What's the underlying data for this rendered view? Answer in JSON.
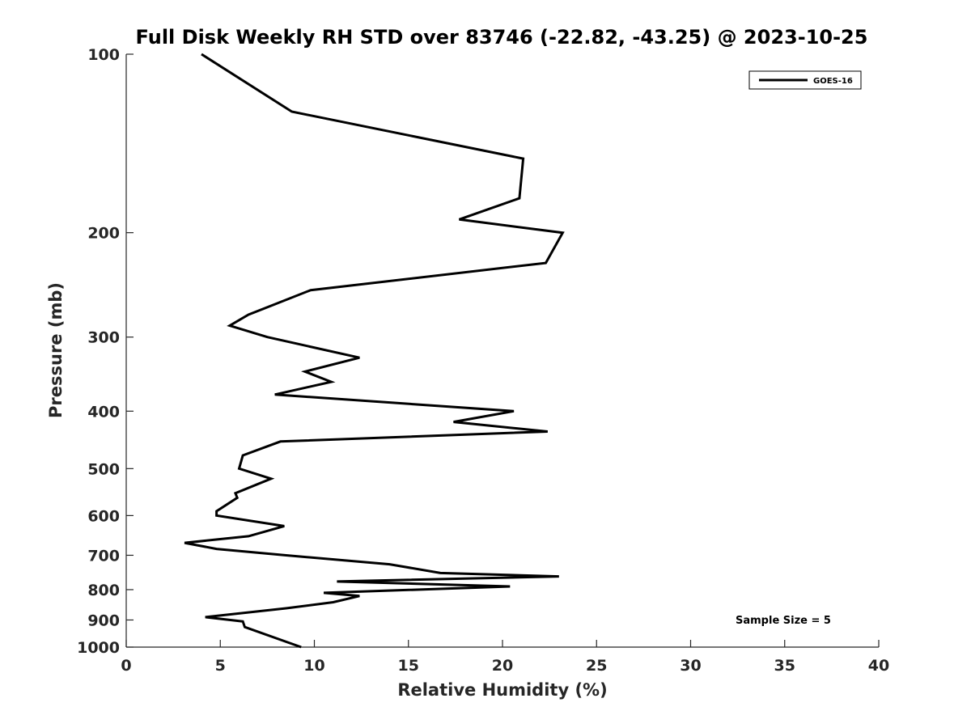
{
  "chart_data": {
    "type": "line",
    "title": "Full Disk Weekly RH STD over 83746 (-22.82, -43.25) @ 2023-10-25",
    "xlabel": "Relative Humidity (%)",
    "ylabel": "Pressure (mb)",
    "xlim": [
      0,
      40
    ],
    "ylim": [
      100,
      1000
    ],
    "y_scale": "log",
    "y_reversed": true,
    "x_ticks": [
      "0",
      "5",
      "10",
      "15",
      "20",
      "25",
      "30",
      "35",
      "40"
    ],
    "y_ticks": [
      "100",
      "200",
      "300",
      "400",
      "500",
      "600",
      "700",
      "800",
      "900",
      "1000"
    ],
    "legend": {
      "position": "top-right",
      "entries": [
        "GOES-16"
      ]
    },
    "annotation": "Sample Size = 5",
    "series": [
      {
        "name": "GOES-16",
        "color": "#000000",
        "points": [
          [
            4.0,
            100
          ],
          [
            8.8,
            125
          ],
          [
            21.1,
            150
          ],
          [
            20.9,
            175
          ],
          [
            17.7,
            190
          ],
          [
            23.2,
            200
          ],
          [
            22.3,
            225
          ],
          [
            9.8,
            250
          ],
          [
            6.5,
            275
          ],
          [
            5.5,
            287
          ],
          [
            7.5,
            300
          ],
          [
            12.4,
            325
          ],
          [
            9.5,
            343
          ],
          [
            10.9,
            357
          ],
          [
            7.9,
            375
          ],
          [
            20.6,
            400
          ],
          [
            17.4,
            417
          ],
          [
            22.4,
            433
          ],
          [
            8.2,
            450
          ],
          [
            6.2,
            475
          ],
          [
            6.0,
            500
          ],
          [
            7.7,
            520
          ],
          [
            5.8,
            550
          ],
          [
            5.9,
            560
          ],
          [
            4.8,
            590
          ],
          [
            4.8,
            600
          ],
          [
            8.4,
            625
          ],
          [
            6.5,
            650
          ],
          [
            3.1,
            667
          ],
          [
            4.8,
            683
          ],
          [
            8.5,
            700
          ],
          [
            14.0,
            725
          ],
          [
            16.7,
            750
          ],
          [
            23.0,
            760
          ],
          [
            11.2,
            775
          ],
          [
            20.4,
            790
          ],
          [
            10.5,
            810
          ],
          [
            12.4,
            820
          ],
          [
            11.0,
            840
          ],
          [
            8.5,
            860
          ],
          [
            4.2,
            890
          ],
          [
            6.2,
            905
          ],
          [
            6.3,
            925
          ],
          [
            9.3,
            1000
          ]
        ]
      }
    ]
  }
}
